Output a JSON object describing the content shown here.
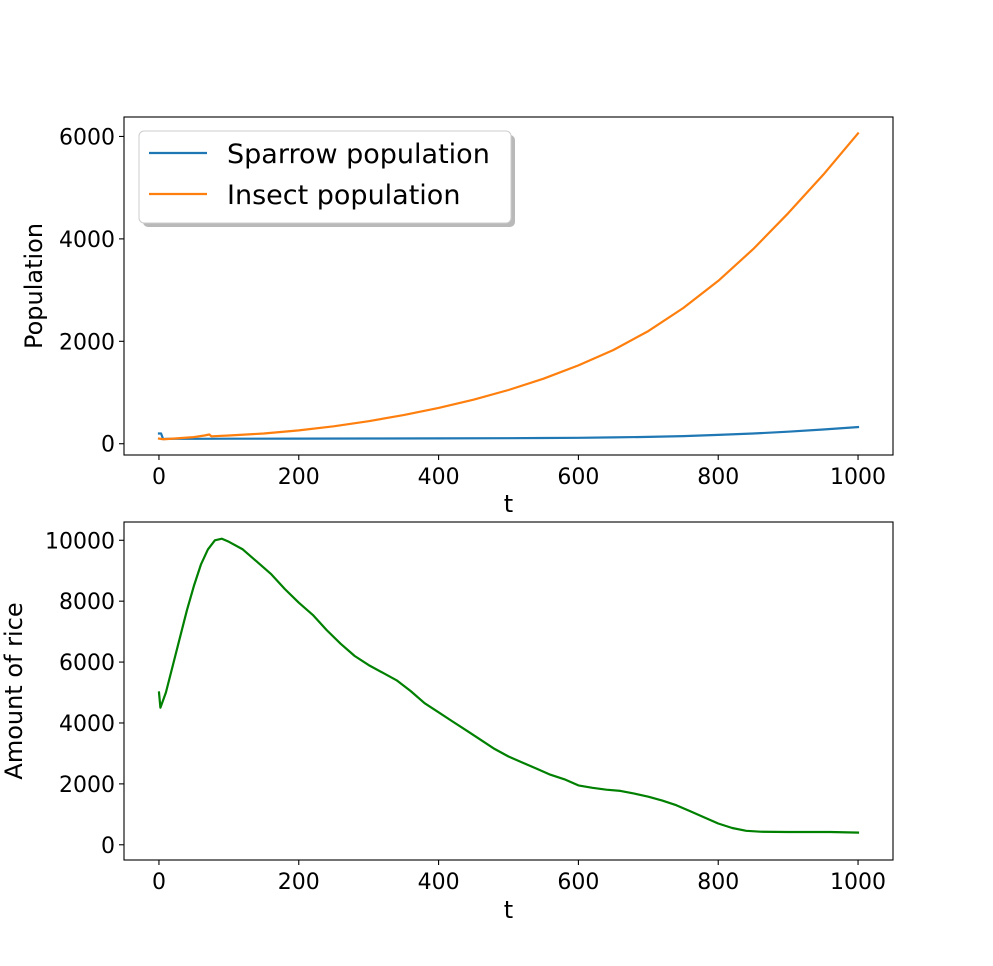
{
  "chart_data": [
    {
      "type": "line",
      "title": "",
      "xlabel": "t",
      "ylabel": "Population",
      "xlim": [
        -50,
        1050
      ],
      "ylim": [
        -220,
        6380
      ],
      "xticks": [
        0,
        200,
        400,
        600,
        800,
        1000
      ],
      "yticks": [
        0,
        2000,
        4000,
        6000
      ],
      "legend": {
        "placement": "upper-left",
        "entries": [
          "Sparrow population",
          "Insect population"
        ]
      },
      "grid": false,
      "series": [
        {
          "name": "Sparrow population",
          "color": "#1f77b4",
          "points": [
            [
              0,
              200
            ],
            [
              3,
              200
            ],
            [
              6,
              90
            ],
            [
              10,
              95
            ],
            [
              20,
              96
            ],
            [
              50,
              97
            ],
            [
              100,
              98
            ],
            [
              200,
              100
            ],
            [
              300,
              102
            ],
            [
              400,
              105
            ],
            [
              500,
              108
            ],
            [
              550,
              111
            ],
            [
              600,
              115
            ],
            [
              650,
              123
            ],
            [
              700,
              133
            ],
            [
              750,
              150
            ],
            [
              800,
              172
            ],
            [
              850,
              200
            ],
            [
              900,
              235
            ],
            [
              950,
              278
            ],
            [
              1000,
              325
            ]
          ]
        },
        {
          "name": "Insect population",
          "color": "#ff7f0e",
          "points": [
            [
              0,
              100
            ],
            [
              5,
              90
            ],
            [
              10,
              90
            ],
            [
              30,
              110
            ],
            [
              50,
              130
            ],
            [
              65,
              160
            ],
            [
              72,
              180
            ],
            [
              75,
              145
            ],
            [
              100,
              160
            ],
            [
              150,
              200
            ],
            [
              200,
              260
            ],
            [
              250,
              340
            ],
            [
              300,
              440
            ],
            [
              350,
              560
            ],
            [
              400,
              700
            ],
            [
              450,
              860
            ],
            [
              500,
              1050
            ],
            [
              550,
              1270
            ],
            [
              600,
              1530
            ],
            [
              650,
              1830
            ],
            [
              700,
              2200
            ],
            [
              750,
              2650
            ],
            [
              800,
              3180
            ],
            [
              850,
              3800
            ],
            [
              900,
              4500
            ],
            [
              950,
              5250
            ],
            [
              1000,
              6060
            ]
          ]
        }
      ]
    },
    {
      "type": "line",
      "title": "",
      "xlabel": "t",
      "ylabel": "Amount of rice",
      "xlim": [
        -50,
        1050
      ],
      "ylim": [
        -500,
        10600
      ],
      "xticks": [
        0,
        200,
        400,
        600,
        800,
        1000
      ],
      "yticks": [
        0,
        2000,
        4000,
        6000,
        8000,
        10000
      ],
      "grid": false,
      "series": [
        {
          "name": "",
          "color": "#008000",
          "points": [
            [
              0,
              5000
            ],
            [
              2,
              4500
            ],
            [
              10,
              5000
            ],
            [
              20,
              5900
            ],
            [
              30,
              6800
            ],
            [
              40,
              7700
            ],
            [
              50,
              8500
            ],
            [
              60,
              9200
            ],
            [
              70,
              9700
            ],
            [
              80,
              10000
            ],
            [
              90,
              10050
            ],
            [
              100,
              9950
            ],
            [
              120,
              9700
            ],
            [
              140,
              9300
            ],
            [
              160,
              8900
            ],
            [
              180,
              8400
            ],
            [
              200,
              7950
            ],
            [
              220,
              7550
            ],
            [
              240,
              7050
            ],
            [
              260,
              6600
            ],
            [
              280,
              6200
            ],
            [
              300,
              5900
            ],
            [
              320,
              5650
            ],
            [
              340,
              5400
            ],
            [
              360,
              5050
            ],
            [
              380,
              4650
            ],
            [
              400,
              4350
            ],
            [
              420,
              4050
            ],
            [
              440,
              3750
            ],
            [
              460,
              3450
            ],
            [
              480,
              3150
            ],
            [
              500,
              2900
            ],
            [
              520,
              2700
            ],
            [
              540,
              2500
            ],
            [
              560,
              2300
            ],
            [
              580,
              2150
            ],
            [
              600,
              1950
            ],
            [
              620,
              1870
            ],
            [
              640,
              1810
            ],
            [
              660,
              1770
            ],
            [
              680,
              1680
            ],
            [
              700,
              1580
            ],
            [
              720,
              1450
            ],
            [
              740,
              1300
            ],
            [
              760,
              1100
            ],
            [
              780,
              900
            ],
            [
              800,
              700
            ],
            [
              820,
              550
            ],
            [
              840,
              460
            ],
            [
              860,
              430
            ],
            [
              900,
              420
            ],
            [
              960,
              420
            ],
            [
              1000,
              400
            ]
          ]
        }
      ]
    }
  ]
}
